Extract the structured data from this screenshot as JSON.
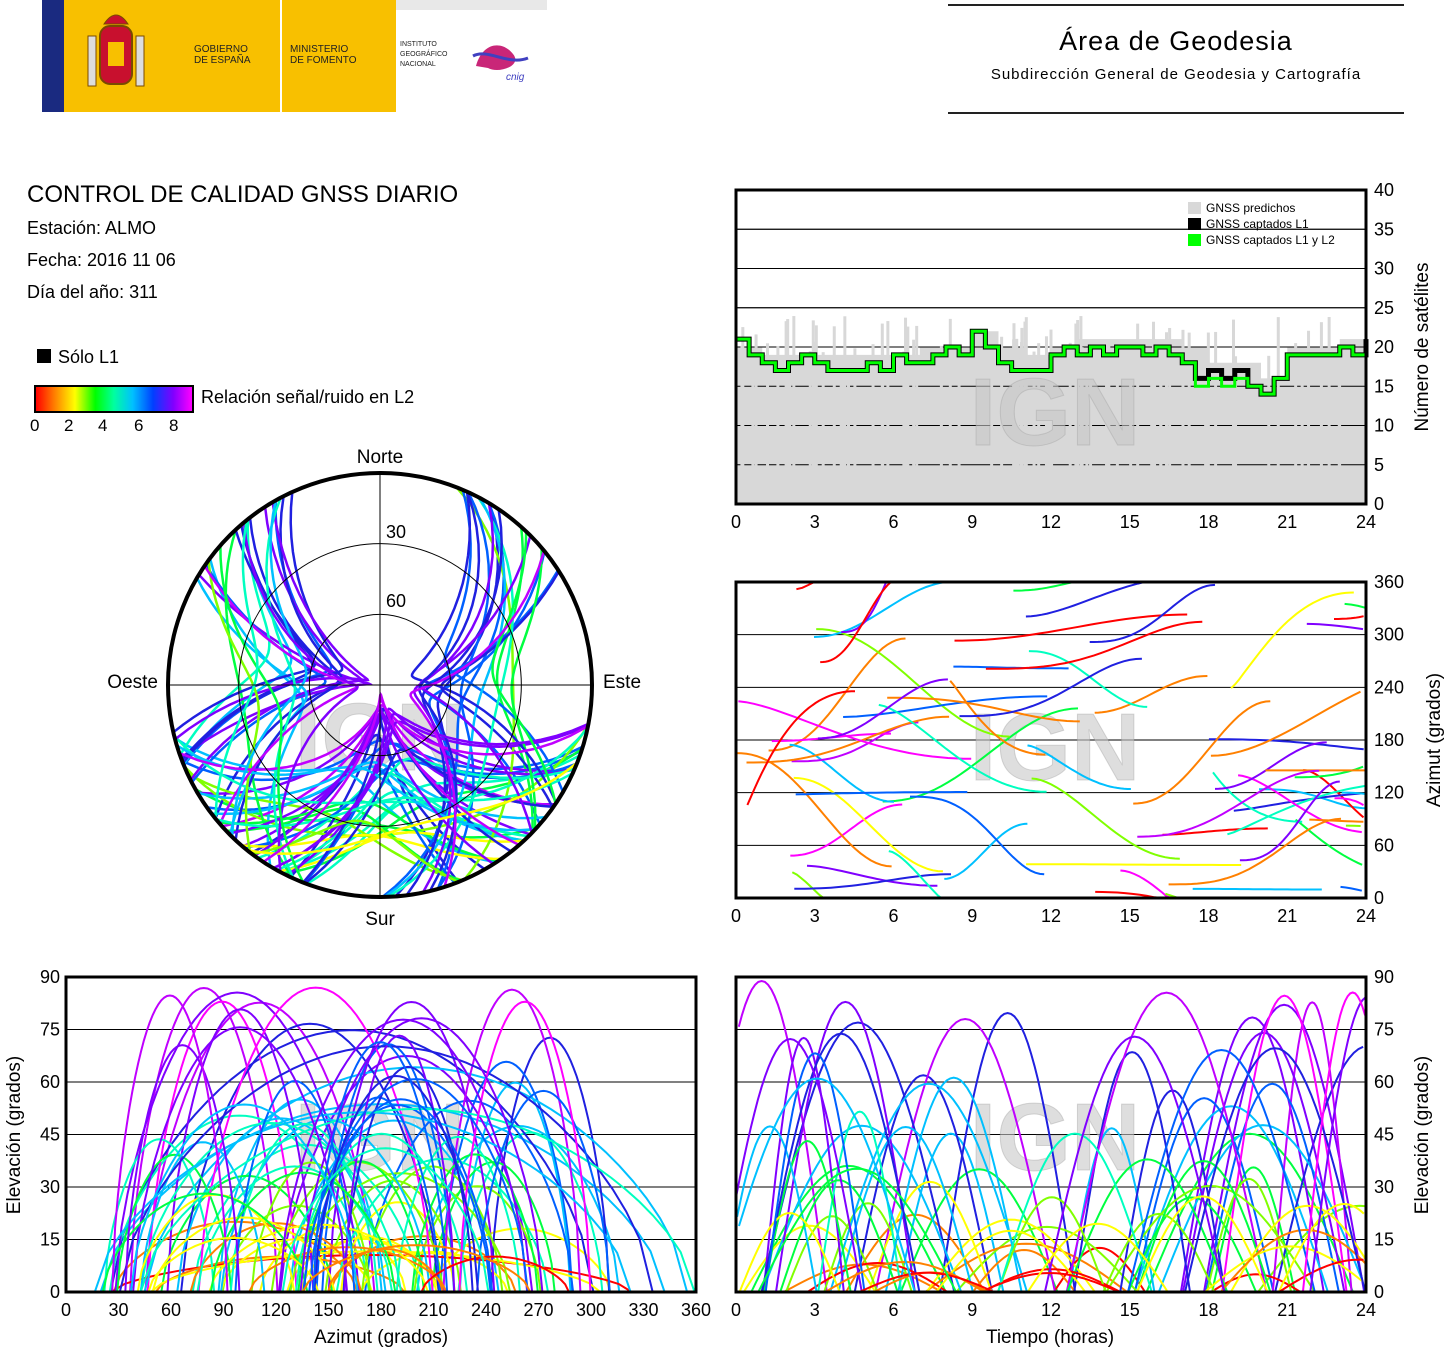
{
  "header": {
    "gov_line1": "GOBIERNO",
    "gov_line2": "DE ESPAÑA",
    "min_line1": "MINISTERIO",
    "min_line2": "DE FOMENTO",
    "ign_line1": "INSTITUTO",
    "ign_line2": "GEOGRÁFICO",
    "ign_line3": "NACIONAL",
    "cnig_logo": "cnig",
    "area_title": "Área de Geodesia",
    "area_subtitle": "Subdirección General de Geodesia y Cartografía",
    "colors": {
      "yellow": "#f8c000",
      "red": "#c8102e",
      "blue": "#1a2a80"
    }
  },
  "report": {
    "title": "CONTROL DE CALIDAD GNSS DIARIO",
    "station": "Estación: ALMO",
    "date": "Fecha: 2016 11 06",
    "doy": "Día del año: 311"
  },
  "legend": {
    "solo_l1": "Sólo L1",
    "snr_label": "Relación señal/ruido en L2",
    "snr_ticks": [
      "0",
      "2",
      "4",
      "6",
      "8"
    ]
  },
  "watermark": "IGN",
  "chart_data": [
    {
      "type": "area",
      "id": "satellites",
      "xlabel": "",
      "ylabel": "Número de satélites",
      "xlim": [
        0,
        24
      ],
      "ylim": [
        0,
        40
      ],
      "xticks": [
        "0",
        "3",
        "6",
        "9",
        "12",
        "15",
        "18",
        "21",
        "24"
      ],
      "yticks": [
        "0",
        "5",
        "10",
        "15",
        "20",
        "25",
        "30",
        "35",
        "40"
      ],
      "grid": true,
      "legend_position": "top-right",
      "series": [
        {
          "name": "GNSS predichos",
          "color": "#d8d8d8",
          "x": [
            0,
            1,
            2,
            3,
            4,
            5,
            6,
            7,
            8,
            9,
            10,
            11,
            12,
            13,
            14,
            15,
            16,
            17,
            18,
            19,
            20,
            21,
            22,
            23,
            24
          ],
          "values": [
            20,
            19,
            19,
            19,
            19,
            19,
            19,
            20,
            20,
            22,
            20,
            19,
            20,
            21,
            21,
            21,
            21,
            20,
            18,
            18,
            16,
            20,
            20,
            21,
            22
          ]
        },
        {
          "name": "GNSS captados L1",
          "color": "#000000",
          "x": [
            0,
            0.5,
            1,
            1.5,
            2,
            2.5,
            3,
            3.5,
            4,
            4.5,
            5,
            5.5,
            6,
            6.5,
            7,
            7.5,
            8,
            8.5,
            9,
            9.5,
            10,
            10.5,
            11,
            11.5,
            12,
            12.5,
            13,
            13.5,
            14,
            14.5,
            15,
            15.5,
            16,
            16.5,
            17,
            17.5,
            18,
            18.5,
            19,
            19.5,
            20,
            20.5,
            21,
            21.5,
            22,
            22.5,
            23,
            23.5,
            24
          ],
          "values": [
            21,
            19,
            18,
            17,
            18,
            19,
            18,
            17,
            17,
            17,
            18,
            17,
            19,
            18,
            18,
            19,
            20,
            19,
            22,
            20,
            18,
            17,
            17,
            17,
            19,
            20,
            19,
            20,
            19,
            20,
            20,
            19,
            20,
            19,
            18,
            16,
            17,
            16,
            17,
            15,
            14,
            16,
            19,
            19,
            19,
            19,
            20,
            19,
            21
          ]
        },
        {
          "name": "GNSS captados L1 y L2",
          "color": "#00ff00",
          "x": [
            0,
            0.5,
            1,
            1.5,
            2,
            2.5,
            3,
            3.5,
            4,
            4.5,
            5,
            5.5,
            6,
            6.5,
            7,
            7.5,
            8,
            8.5,
            9,
            9.5,
            10,
            10.5,
            11,
            11.5,
            12,
            12.5,
            13,
            13.5,
            14,
            14.5,
            15,
            15.5,
            16,
            16.5,
            17,
            17.5,
            18,
            18.5,
            19,
            19.5,
            20,
            20.5,
            21,
            21.5,
            22,
            22.5,
            23,
            23.5,
            24
          ],
          "values": [
            21,
            19,
            18,
            17,
            18,
            19,
            18,
            17,
            17,
            17,
            18,
            17,
            19,
            18,
            18,
            19,
            20,
            19,
            22,
            20,
            18,
            17,
            17,
            17,
            19,
            20,
            19,
            20,
            19,
            20,
            20,
            19,
            20,
            19,
            18,
            15,
            16,
            15,
            16,
            15,
            14,
            16,
            19,
            19,
            19,
            19,
            20,
            19,
            21
          ]
        }
      ]
    },
    {
      "type": "line",
      "id": "azimuth-time",
      "xlabel": "",
      "ylabel": "Azimut (grados)",
      "xlim": [
        0,
        24
      ],
      "ylim": [
        0,
        360
      ],
      "xticks": [
        "0",
        "3",
        "6",
        "9",
        "12",
        "15",
        "18",
        "21",
        "24"
      ],
      "yticks": [
        "0",
        "60",
        "120",
        "180",
        "240",
        "300",
        "360"
      ],
      "grid": true
    },
    {
      "type": "scatter",
      "id": "skyplot",
      "polar": true,
      "labels": {
        "north": "Norte",
        "south": "Sur",
        "east": "Este",
        "west": "Oeste"
      },
      "elevation_rings": [
        "30",
        "60"
      ]
    },
    {
      "type": "line",
      "id": "elevation-azimuth",
      "xlabel": "Azimut (grados)",
      "ylabel": "Elevación (grados)",
      "xlim": [
        0,
        360
      ],
      "ylim": [
        0,
        90
      ],
      "xticks": [
        "0",
        "30",
        "60",
        "90",
        "120",
        "150",
        "180",
        "210",
        "240",
        "270",
        "300",
        "330",
        "360"
      ],
      "yticks": [
        "0",
        "15",
        "30",
        "45",
        "60",
        "75",
        "90"
      ],
      "grid": true
    },
    {
      "type": "line",
      "id": "elevation-time",
      "xlabel": "Tiempo (horas)",
      "ylabel": "Elevación (grados)",
      "xlim": [
        0,
        24
      ],
      "ylim": [
        0,
        90
      ],
      "xticks": [
        "0",
        "3",
        "6",
        "9",
        "12",
        "15",
        "18",
        "21",
        "24"
      ],
      "yticks": [
        "0",
        "15",
        "30",
        "45",
        "60",
        "75",
        "90"
      ],
      "grid": true
    }
  ]
}
